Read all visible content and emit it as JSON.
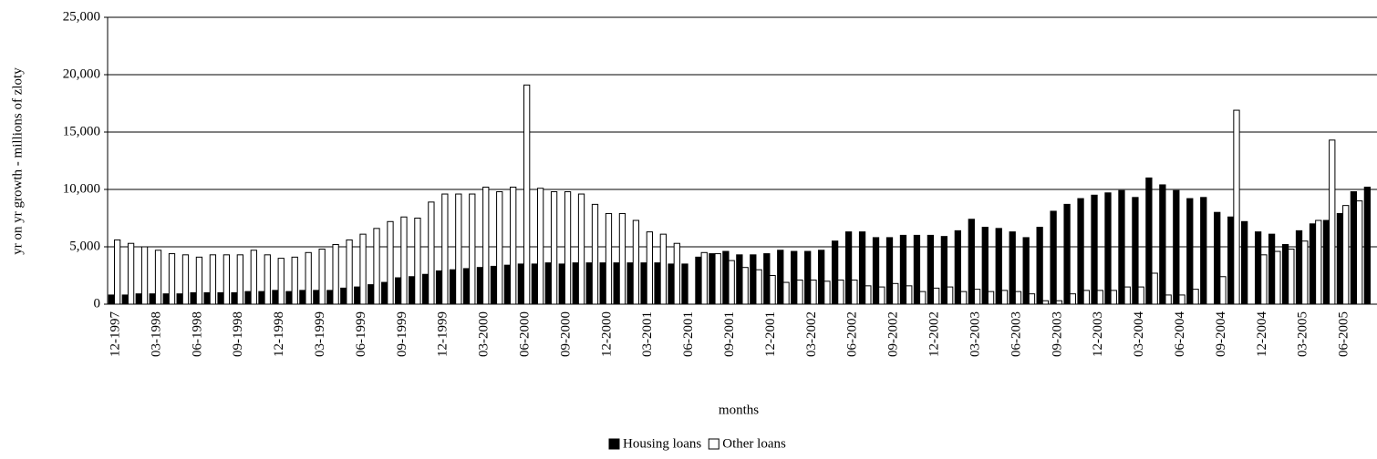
{
  "chart_data": {
    "type": "bar",
    "x_label": "months",
    "y_label": "yr on yr growth - millions of zloty",
    "categories": [
      "12-1997",
      null,
      null,
      "03-1998",
      null,
      null,
      "06-1998",
      null,
      null,
      "09-1998",
      null,
      null,
      "12-1998",
      null,
      null,
      "03-1999",
      null,
      null,
      "06-1999",
      null,
      null,
      "09-1999",
      null,
      null,
      "12-1999",
      null,
      null,
      "03-2000",
      null,
      null,
      "06-2000",
      null,
      null,
      "09-2000",
      null,
      null,
      "12-2000",
      null,
      null,
      "03-2001",
      null,
      null,
      "06-2001",
      null,
      null,
      "09-2001",
      null,
      null,
      "12-2001",
      null,
      null,
      "03-2002",
      null,
      null,
      "06-2002",
      null,
      null,
      "09-2002",
      null,
      null,
      "12-2002",
      null,
      null,
      "03-2003",
      null,
      null,
      "06-2003",
      null,
      null,
      "09-2003",
      null,
      null,
      "12-2003",
      null,
      null,
      "03-2004",
      null,
      null,
      "06-2004",
      null,
      null,
      "09-2004",
      null,
      null,
      "12-2004",
      null,
      null,
      "03-2005",
      null,
      null,
      "06-2005",
      null,
      null
    ],
    "series": [
      {
        "name": "Housing loans",
        "color": "#000000",
        "values": [
          800,
          800,
          900,
          900,
          900,
          900,
          1000,
          1000,
          1000,
          1000,
          1100,
          1100,
          1200,
          1100,
          1200,
          1200,
          1200,
          1400,
          1500,
          1700,
          1900,
          2300,
          2400,
          2600,
          2900,
          3000,
          3100,
          3200,
          3300,
          3400,
          3500,
          3500,
          3600,
          3500,
          3600,
          3600,
          3600,
          3600,
          3600,
          3600,
          3600,
          3500,
          3500,
          4100,
          4400,
          4600,
          4300,
          4300,
          4400,
          4700,
          4600,
          4600,
          4700,
          5500,
          6300,
          6300,
          5800,
          5800,
          6000,
          6000,
          6000,
          5900,
          6400,
          7400,
          6700,
          6600,
          6300,
          5800,
          6700,
          8100,
          8700,
          9200,
          9500,
          9700,
          9900,
          9300,
          11000,
          10400,
          9900,
          9200,
          9300,
          8000,
          7600,
          7200,
          6300,
          6100,
          5200,
          6400,
          7000,
          7300,
          7900,
          9800,
          10200
        ]
      },
      {
        "name": "Other loans",
        "color": "#ffffff",
        "values": [
          5600,
          5300,
          5000,
          4700,
          4400,
          4300,
          4100,
          4300,
          4300,
          4300,
          4700,
          4300,
          4000,
          4100,
          4500,
          4800,
          5200,
          5600,
          6100,
          6600,
          7200,
          7600,
          7500,
          8900,
          9600,
          9600,
          9600,
          10200,
          9800,
          10200,
          19100,
          10100,
          9800,
          9800,
          9600,
          8700,
          7900,
          7900,
          7300,
          6300,
          6100,
          5300,
          0,
          4500,
          4400,
          3800,
          3200,
          3000,
          2500,
          1900,
          2100,
          2100,
          2000,
          2100,
          2100,
          1600,
          1500,
          1800,
          1600,
          1100,
          1400,
          1500,
          1100,
          1300,
          1100,
          1200,
          1100,
          900,
          300,
          300,
          900,
          1200,
          1200,
          1200,
          1500,
          1500,
          2700,
          800,
          800,
          1300,
          0,
          2400,
          16900,
          0,
          4300,
          4600,
          4800,
          5500,
          7300,
          14300,
          8600,
          9000,
          null
        ]
      }
    ],
    "ylim": [
      0,
      25000
    ],
    "yticks": [
      0,
      {
        "value": 5000,
        "label": "5,000"
      },
      {
        "value": 10000,
        "label": "10,000"
      },
      {
        "value": 15000,
        "label": "15,000"
      },
      {
        "value": 20000,
        "label": "20,000"
      },
      {
        "value": 25000,
        "label": "25,000"
      }
    ],
    "grid": true,
    "legend": "bottom"
  }
}
